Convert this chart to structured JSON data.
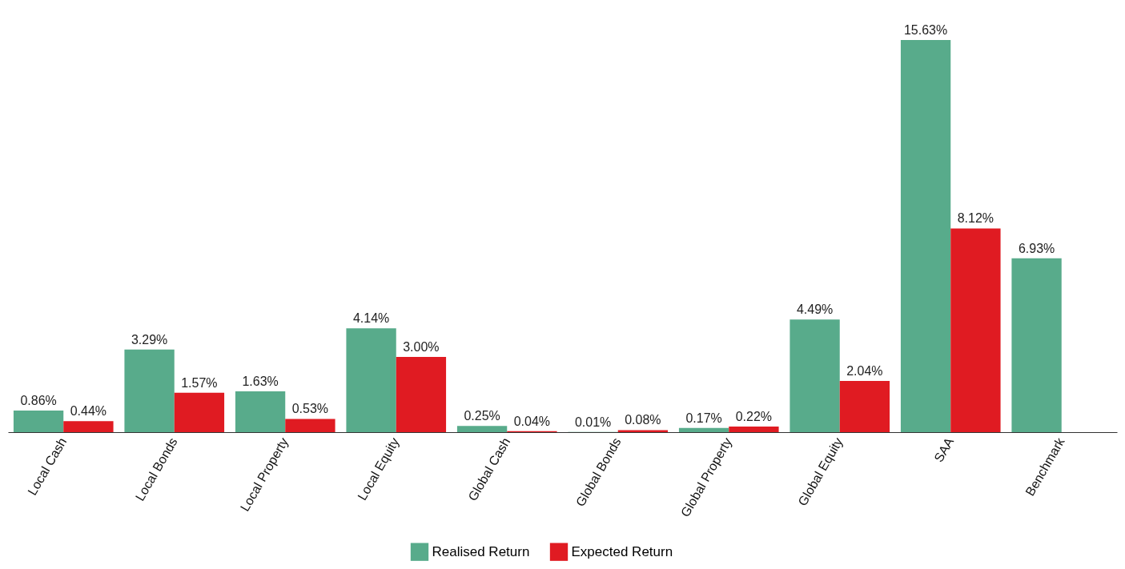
{
  "chart_data": {
    "type": "bar",
    "categories": [
      "Local Cash",
      "Local Bonds",
      "Local Property",
      "Local Equity",
      "Global Cash",
      "Global Bonds",
      "Global Property",
      "Global Equity",
      "SAA",
      "Benchmark"
    ],
    "series": [
      {
        "name": "Realised Return",
        "color": "#58ab8b",
        "values": [
          0.86,
          3.29,
          1.63,
          4.14,
          0.25,
          0.01,
          0.17,
          4.49,
          15.63,
          6.93
        ],
        "value_labels": [
          "0.86%",
          "3.29%",
          "1.63%",
          "4.14%",
          "0.25%",
          "0.01%",
          "0.17%",
          "4.49%",
          "15.63%",
          "6.93%"
        ]
      },
      {
        "name": "Expected Return",
        "color": "#e01b22",
        "values": [
          0.44,
          1.57,
          0.53,
          3.0,
          0.04,
          0.08,
          0.22,
          2.04,
          8.12,
          null
        ],
        "value_labels": [
          "0.44%",
          "1.57%",
          "0.53%",
          "3.00%",
          "0.04%",
          "0.08%",
          "0.22%",
          "2.04%",
          "8.12%",
          null
        ]
      }
    ],
    "legend": "bottom",
    "grid": false,
    "tick_labels": "x"
  }
}
